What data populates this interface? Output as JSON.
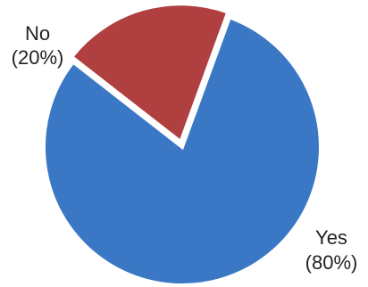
{
  "chart_data": {
    "type": "pie",
    "title": "",
    "slices": [
      {
        "label": "Yes",
        "percent_label": "(80%)",
        "value": 80,
        "color": "#3a78c6"
      },
      {
        "label": "No",
        "percent_label": "(20%)",
        "value": 20,
        "color": "#b0403f"
      }
    ],
    "start_angle_deg": 20,
    "direction": "clockwise",
    "exploded_slice": "No",
    "slice_border_color": "#ffffff",
    "legend": "none"
  }
}
